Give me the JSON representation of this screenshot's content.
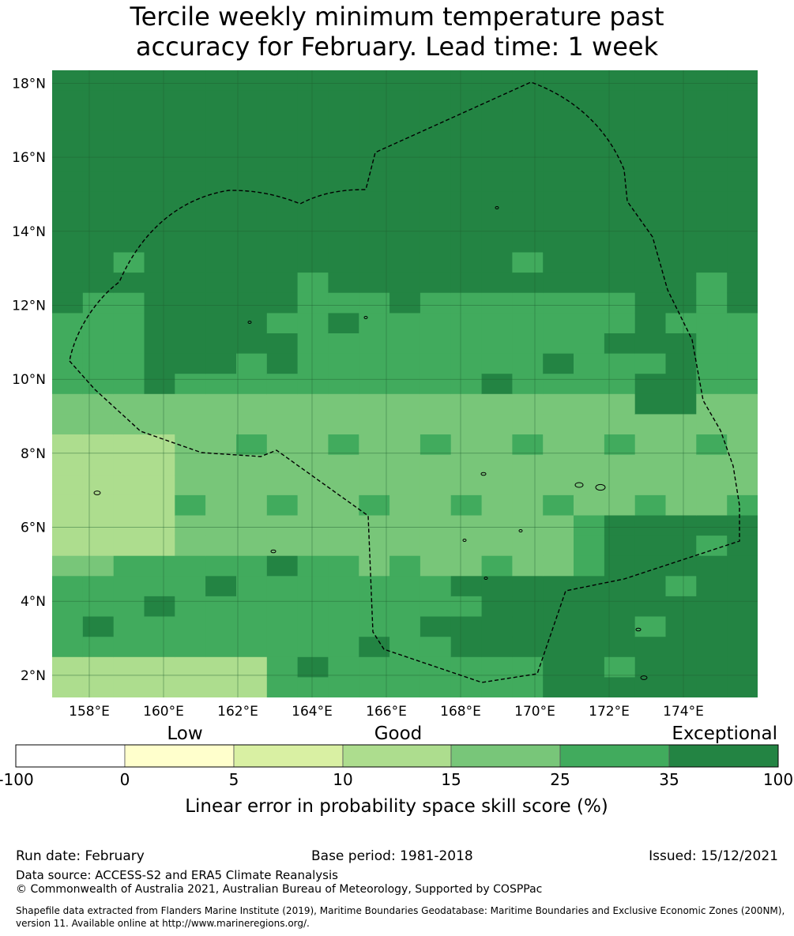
{
  "title": {
    "line1": "Tercile weekly minimum temperature past",
    "line2": "accuracy for February. Lead time: 1 week"
  },
  "map": {
    "lat_range": [
      1.4,
      18.35
    ],
    "lon_range": [
      157.0,
      176.0
    ],
    "lat_ticks": [
      "18°N",
      "16°N",
      "14°N",
      "12°N",
      "10°N",
      "8°N",
      "6°N",
      "4°N",
      "2°N"
    ],
    "lon_ticks": [
      "158°E",
      "160°E",
      "162°E",
      "164°E",
      "166°E",
      "168°E",
      "170°E",
      "172°E",
      "174°E"
    ],
    "boundary_label": "dashed EEZ boundary"
  },
  "colorbar": {
    "category_labels": [
      "Low",
      "Good",
      "Exceptional"
    ],
    "tick_labels": [
      "-100",
      "0",
      "5",
      "10",
      "15",
      "25",
      "35",
      "100"
    ],
    "colors": [
      "#ffffff",
      "#ffffcc",
      "#d9f0a3",
      "#addd8e",
      "#78c679",
      "#41ab5d",
      "#238443"
    ],
    "xlabel": "Linear error in probability space skill score (%)"
  },
  "footer": {
    "run_date": "Run date: February",
    "base_period": "Base period: 1981-2018",
    "issued": "Issued: 15/12/2021",
    "data_source": "Data source: ACCESS-S2 and ERA5 Climate Reanalysis",
    "copyright": "© Commonwealth of Australia 2021, Australian Bureau of Meteorology, Supported by COSPPac",
    "shapefile_line1": "Shapefile data extracted from Flanders Marine Institute (2019), Maritime Boundaries Geodatabase: Maritime Boundaries and Exclusive Economic Zones (200NM),",
    "shapefile_line2": "version 11. Available online at http://www.marineregions.org/."
  }
}
